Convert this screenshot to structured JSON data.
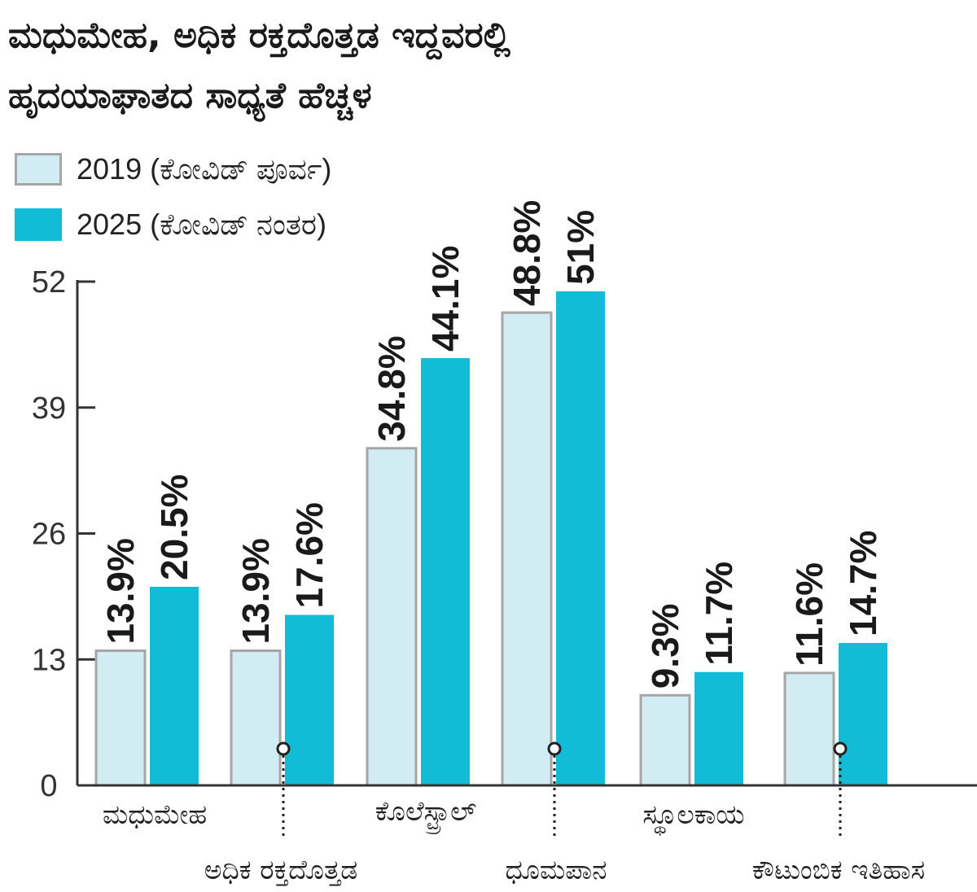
{
  "chart_data": {
    "type": "bar",
    "title": "ಮಧುಮೇಹ, ಅಧಿಕ ರಕ್ತದೊತ್ತಡ ಇದ್ದವರಲ್ಲಿ",
    "subtitle": "ಹೃದಯಾಘಾತದ ಸಾಧ್ಯತೆ ಹೆಚ್ಚಳ",
    "categories": [
      "ಮಧುಮೇಹ",
      "ಅಧಿಕ ರಕ್ತದೊತ್ತಡ",
      "ಕೊಲೆಸ್ಟ್ರಾಲ್",
      "ಧೂಮಪಾನ",
      "ಸ್ಥೂಲಕಾಯ",
      "ಕೌಟುಂಬಿಕ ಇತಿಹಾಸ"
    ],
    "series": [
      {
        "name": "2019 (ಕೋವಿಡ್ ಪೂರ್ವ)",
        "values": [
          13.9,
          13.9,
          34.8,
          48.8,
          9.3,
          11.6
        ],
        "labels": [
          "13.9%",
          "13.9%",
          "34.8%",
          "48.8%",
          "9.3%",
          "11.6%"
        ],
        "color": "#d2ecf3",
        "stroke": "#a6a6a6"
      },
      {
        "name": "2025 (ಕೋವಿಡ್ ನಂತರ)",
        "values": [
          20.5,
          17.6,
          44.1,
          51,
          11.7,
          14.7
        ],
        "labels": [
          "20.5%",
          "17.6%",
          "44.1%",
          "51%",
          "11.7%",
          "14.7%"
        ],
        "color": "#13bcd6"
      }
    ],
    "yticks": [
      "0",
      "13",
      "26",
      "39",
      "52"
    ],
    "ylim": [
      0,
      52
    ],
    "xlabel": "",
    "ylabel": "",
    "legend": "top-left",
    "grid": false,
    "axis_color": "#333333"
  }
}
